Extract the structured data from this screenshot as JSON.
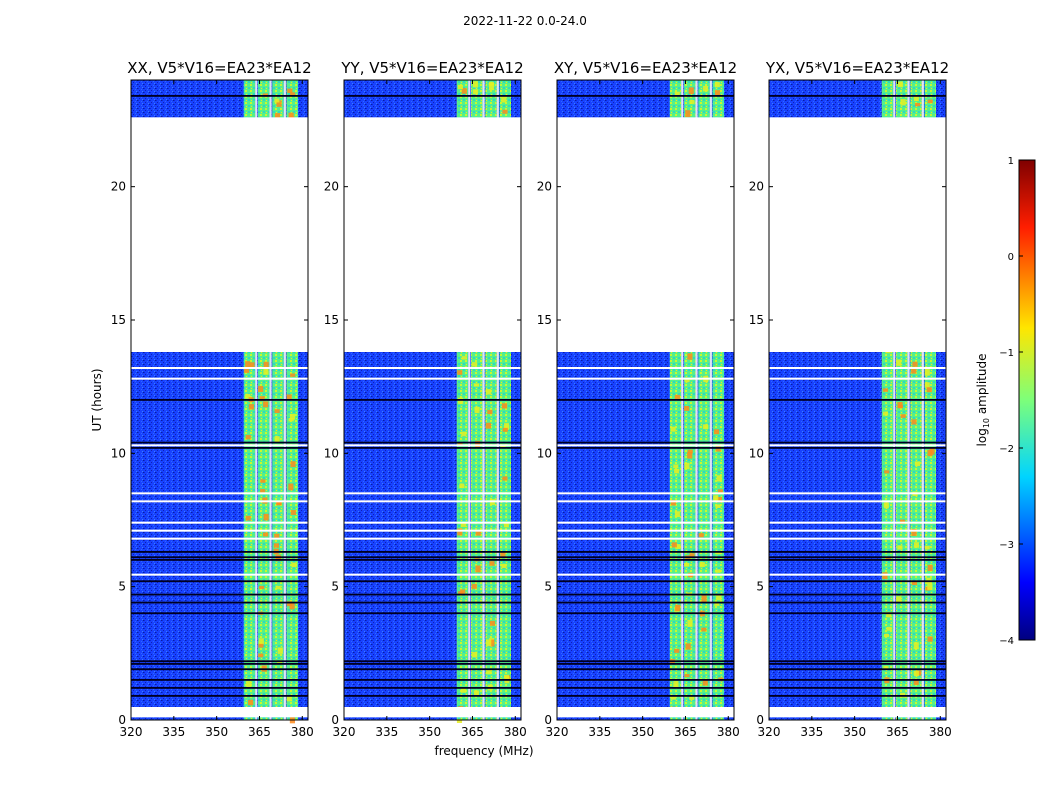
{
  "suptitle": "2022-11-22 0.0-24.0",
  "colors": {
    "background_blue": "#1a3dff",
    "band_cyan_green": "#3fe6a8",
    "band_yellow": "#e8f020",
    "hot_orange": "#ff8a1a",
    "hot_red": "#e83010",
    "frame": "#000000",
    "gap": "#ffffff"
  },
  "chart_data": {
    "type": "heatmap",
    "xlabel": "frequency (MHz)",
    "ylabel": "UT (hours)",
    "xlim": [
      320,
      382
    ],
    "ylim": [
      0,
      24
    ],
    "xticks": [
      320,
      335,
      350,
      365,
      380
    ],
    "yticks": [
      0,
      5,
      10,
      15,
      20
    ],
    "xtick_labels": [
      "320",
      "335",
      "350",
      "365",
      "380"
    ],
    "ytick_labels": [
      "0",
      "5",
      "10",
      "15",
      "20"
    ],
    "data_gap_hours": [
      22.6,
      13.8
    ],
    "gap_hours_small": [
      0.45,
      0.1
    ],
    "bright_band_mhz": [
      359.5,
      378.5
    ],
    "bright_subbands_mhz": [
      [
        359.5,
        363.5
      ],
      [
        364.5,
        368.5
      ],
      [
        369.5,
        373.5
      ],
      [
        374.5,
        378.5
      ]
    ],
    "panels": [
      {
        "title": "XX, V5*V16=EA23*EA12"
      },
      {
        "title": "YY, V5*V16=EA23*EA12"
      },
      {
        "title": "XY, V5*V16=EA23*EA12"
      },
      {
        "title": "YX, V5*V16=EA23*EA12"
      }
    ],
    "colorbar": {
      "label": "log10 amplitude",
      "label_main": "log",
      "label_sub": "10",
      "label_tail": " amplitude",
      "range": [
        -4,
        1
      ],
      "ticks": [
        1,
        0,
        -1,
        -2,
        -3,
        -4
      ],
      "tick_labels": [
        "1",
        "0",
        "−1",
        "−2",
        "−3",
        "−4"
      ]
    },
    "white_gap_hours": [
      0.45,
      5.45,
      6.8,
      7.1,
      7.4,
      8.2,
      8.5,
      12.8,
      13.2,
      10.3
    ],
    "dark_line_hours": [
      0.9,
      1.2,
      1.5,
      1.9,
      2.1,
      2.2,
      4.0,
      4.4,
      4.7,
      5.2,
      6.0,
      6.1,
      6.3,
      10.2,
      10.4,
      12.0,
      23.4
    ]
  }
}
